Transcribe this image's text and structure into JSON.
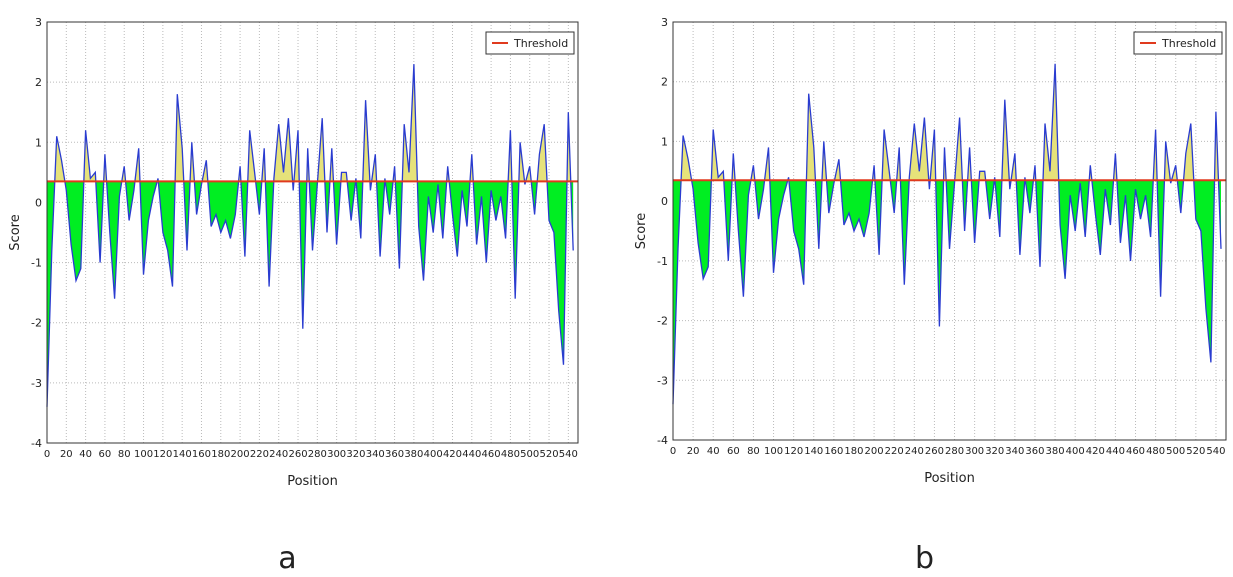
{
  "chart_data": [
    {
      "type": "line",
      "ylabel": "Score",
      "xlabel": "Position",
      "caption": "a",
      "x": [
        0,
        5,
        10,
        15,
        20,
        25,
        30,
        35,
        40,
        45,
        50,
        55,
        60,
        65,
        70,
        75,
        80,
        85,
        90,
        95,
        100,
        105,
        110,
        115,
        120,
        125,
        130,
        135,
        140,
        145,
        150,
        155,
        160,
        165,
        170,
        175,
        180,
        185,
        190,
        195,
        200,
        205,
        210,
        215,
        220,
        225,
        230,
        235,
        240,
        245,
        250,
        255,
        260,
        265,
        270,
        275,
        280,
        285,
        290,
        295,
        300,
        305,
        310,
        315,
        320,
        325,
        330,
        335,
        340,
        345,
        350,
        355,
        360,
        365,
        370,
        375,
        380,
        385,
        390,
        395,
        400,
        405,
        410,
        415,
        420,
        425,
        430,
        435,
        440,
        445,
        450,
        455,
        460,
        465,
        470,
        475,
        480,
        485,
        490,
        495,
        500,
        505,
        510,
        515,
        520,
        525,
        530,
        535,
        540,
        545
      ],
      "series": [
        {
          "color": "#2a3cd0",
          "values": [
            -3.4,
            -0.8,
            1.1,
            0.7,
            0.2,
            -0.7,
            -1.3,
            -1.1,
            1.2,
            0.4,
            0.5,
            -1.0,
            0.8,
            -0.5,
            -1.6,
            0.1,
            0.6,
            -0.3,
            0.2,
            0.9,
            -1.2,
            -0.3,
            0.1,
            0.4,
            -0.5,
            -0.8,
            -1.4,
            1.8,
            0.9,
            -0.8,
            1.0,
            -0.2,
            0.3,
            0.7,
            -0.4,
            -0.2,
            -0.5,
            -0.3,
            -0.6,
            -0.2,
            0.6,
            -0.9,
            1.2,
            0.5,
            -0.2,
            0.9,
            -1.4,
            0.4,
            1.3,
            0.5,
            1.4,
            0.2,
            1.2,
            -2.1,
            0.9,
            -0.8,
            0.3,
            1.4,
            -0.5,
            0.9,
            -0.7,
            0.5,
            0.5,
            -0.3,
            0.4,
            -0.6,
            1.7,
            0.2,
            0.8,
            -0.9,
            0.4,
            -0.2,
            0.6,
            -1.1,
            1.3,
            0.5,
            2.3,
            -0.4,
            -1.3,
            0.1,
            -0.5,
            0.3,
            -0.6,
            0.6,
            -0.2,
            -0.9,
            0.2,
            -0.4,
            0.8,
            -0.7,
            0.1,
            -1.0,
            0.2,
            -0.3,
            0.1,
            -0.6,
            1.2,
            -1.6,
            1.0,
            0.3,
            0.6,
            -0.2,
            0.8,
            1.3,
            -0.3,
            -0.5,
            -1.8,
            -2.7,
            1.5,
            -0.8
          ]
        }
      ],
      "threshold": {
        "name": "Threshold",
        "value": 0.35,
        "color": "#e03a1e"
      },
      "fill_below": "#00ee22",
      "fill_above": "#e6e27a",
      "xlim": [
        0,
        550
      ],
      "ylim": [
        -4,
        3
      ],
      "yticks": [
        -4,
        -3,
        -2,
        -1,
        0,
        1,
        2,
        3
      ],
      "xticks": [
        0,
        20,
        40,
        60,
        80,
        100,
        120,
        140,
        160,
        180,
        200,
        220,
        240,
        260,
        280,
        300,
        320,
        340,
        360,
        380,
        400,
        420,
        440,
        460,
        480,
        500,
        520,
        540
      ],
      "grid": true,
      "legend": "upper right"
    },
    {
      "type": "line",
      "ylabel": "Score",
      "xlabel": "Position",
      "caption": "b",
      "x": [
        0,
        5,
        10,
        15,
        20,
        25,
        30,
        35,
        40,
        45,
        50,
        55,
        60,
        65,
        70,
        75,
        80,
        85,
        90,
        95,
        100,
        105,
        110,
        115,
        120,
        125,
        130,
        135,
        140,
        145,
        150,
        155,
        160,
        165,
        170,
        175,
        180,
        185,
        190,
        195,
        200,
        205,
        210,
        215,
        220,
        225,
        230,
        235,
        240,
        245,
        250,
        255,
        260,
        265,
        270,
        275,
        280,
        285,
        290,
        295,
        300,
        305,
        310,
        315,
        320,
        325,
        330,
        335,
        340,
        345,
        350,
        355,
        360,
        365,
        370,
        375,
        380,
        385,
        390,
        395,
        400,
        405,
        410,
        415,
        420,
        425,
        430,
        435,
        440,
        445,
        450,
        455,
        460,
        465,
        470,
        475,
        480,
        485,
        490,
        495,
        500,
        505,
        510,
        515,
        520,
        525,
        530,
        535,
        540,
        545
      ],
      "series": [
        {
          "color": "#2a3cd0",
          "values": [
            -3.4,
            -0.8,
            1.1,
            0.7,
            0.2,
            -0.7,
            -1.3,
            -1.1,
            1.2,
            0.4,
            0.5,
            -1.0,
            0.8,
            -0.5,
            -1.6,
            0.1,
            0.6,
            -0.3,
            0.2,
            0.9,
            -1.2,
            -0.3,
            0.1,
            0.4,
            -0.5,
            -0.8,
            -1.4,
            1.8,
            0.9,
            -0.8,
            1.0,
            -0.2,
            0.3,
            0.7,
            -0.4,
            -0.2,
            -0.5,
            -0.3,
            -0.6,
            -0.2,
            0.6,
            -0.9,
            1.2,
            0.5,
            -0.2,
            0.9,
            -1.4,
            0.4,
            1.3,
            0.5,
            1.4,
            0.2,
            1.2,
            -2.1,
            0.9,
            -0.8,
            0.3,
            1.4,
            -0.5,
            0.9,
            -0.7,
            0.5,
            0.5,
            -0.3,
            0.4,
            -0.6,
            1.7,
            0.2,
            0.8,
            -0.9,
            0.4,
            -0.2,
            0.6,
            -1.1,
            1.3,
            0.5,
            2.3,
            -0.4,
            -1.3,
            0.1,
            -0.5,
            0.3,
            -0.6,
            0.6,
            -0.2,
            -0.9,
            0.2,
            -0.4,
            0.8,
            -0.7,
            0.1,
            -1.0,
            0.2,
            -0.3,
            0.1,
            -0.6,
            1.2,
            -1.6,
            1.0,
            0.3,
            0.6,
            -0.2,
            0.8,
            1.3,
            -0.3,
            -0.5,
            -1.8,
            -2.7,
            1.5,
            -0.8
          ]
        }
      ],
      "threshold": {
        "name": "Threshold",
        "value": 0.35,
        "color": "#e03a1e"
      },
      "fill_below": "#00ee22",
      "fill_above": "#e6e27a",
      "xlim": [
        0,
        550
      ],
      "ylim": [
        -4,
        3
      ],
      "yticks": [
        -4,
        -3,
        -2,
        -1,
        0,
        1,
        2,
        3
      ],
      "xticks": [
        0,
        20,
        40,
        60,
        80,
        100,
        120,
        140,
        160,
        180,
        200,
        220,
        240,
        260,
        280,
        300,
        320,
        340,
        360,
        380,
        400,
        420,
        440,
        460,
        480,
        500,
        520,
        540
      ],
      "grid": true,
      "legend": "upper right"
    }
  ]
}
